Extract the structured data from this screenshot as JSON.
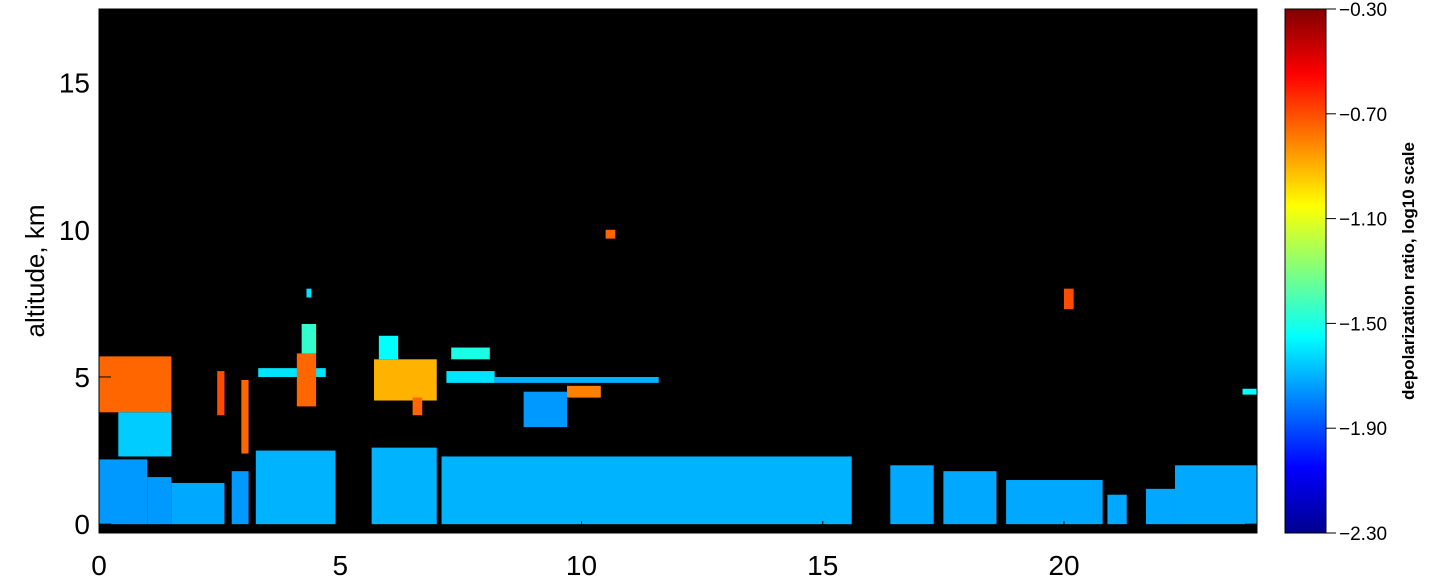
{
  "chart_data": {
    "type": "heatmap",
    "title": "",
    "xlabel": "",
    "ylabel": "altitude, km",
    "xlim": [
      0,
      24
    ],
    "ylim": [
      -0.3,
      17.5
    ],
    "x_ticks": [
      0,
      5,
      10,
      15,
      20
    ],
    "x_tick_labels": [
      "0",
      "5",
      "10",
      "15",
      "20"
    ],
    "y_ticks": [
      0,
      5,
      10,
      15
    ],
    "y_tick_labels": [
      "0",
      "5",
      "10",
      "15"
    ],
    "background_color": "#000000",
    "colorbar": {
      "label": "depolarization ratio, log10 scale",
      "range": [
        -2.3,
        -0.3
      ],
      "ticks": [
        -2.3,
        -1.9,
        -1.5,
        -1.1,
        -0.7,
        -0.3
      ],
      "tick_labels": [
        "−2.30",
        "−1.90",
        "−1.50",
        "−1.10",
        "−0.70",
        "−0.30"
      ],
      "colormap": "jet"
    },
    "regions": [
      {
        "x": [
          0.0,
          1.0
        ],
        "y": [
          0.0,
          2.2
        ],
        "value": -1.75
      },
      {
        "x": [
          1.0,
          1.5
        ],
        "y": [
          0.0,
          1.6
        ],
        "value": -1.75
      },
      {
        "x": [
          1.5,
          2.6
        ],
        "y": [
          0.0,
          1.4
        ],
        "value": -1.72
      },
      {
        "x": [
          2.75,
          3.1
        ],
        "y": [
          0.0,
          1.8
        ],
        "value": -1.75
      },
      {
        "x": [
          3.25,
          4.9
        ],
        "y": [
          0.0,
          2.5
        ],
        "value": -1.7
      },
      {
        "x": [
          5.65,
          7.0
        ],
        "y": [
          0.0,
          2.6
        ],
        "value": -1.7
      },
      {
        "x": [
          7.1,
          15.6
        ],
        "y": [
          0.0,
          2.3
        ],
        "value": -1.7
      },
      {
        "x": [
          16.4,
          17.3
        ],
        "y": [
          0.0,
          2.0
        ],
        "value": -1.72
      },
      {
        "x": [
          17.5,
          18.6
        ],
        "y": [
          0.0,
          1.8
        ],
        "value": -1.72
      },
      {
        "x": [
          18.8,
          20.8
        ],
        "y": [
          0.0,
          1.5
        ],
        "value": -1.72
      },
      {
        "x": [
          20.9,
          21.3
        ],
        "y": [
          0.0,
          1.0
        ],
        "value": -1.72
      },
      {
        "x": [
          21.7,
          22.3
        ],
        "y": [
          0.0,
          1.2
        ],
        "value": -1.72
      },
      {
        "x": [
          22.3,
          24.0
        ],
        "y": [
          0.0,
          2.0
        ],
        "value": -1.72
      },
      {
        "x": [
          0.0,
          1.5
        ],
        "y": [
          3.8,
          5.7
        ],
        "value": -0.75
      },
      {
        "x": [
          0.4,
          1.5
        ],
        "y": [
          2.3,
          3.8
        ],
        "value": -1.65
      },
      {
        "x": [
          2.45,
          2.6
        ],
        "y": [
          3.7,
          5.2
        ],
        "value": -0.7
      },
      {
        "x": [
          2.95,
          3.1
        ],
        "y": [
          2.4,
          4.9
        ],
        "value": -0.75
      },
      {
        "x": [
          3.3,
          4.7
        ],
        "y": [
          5.0,
          5.3
        ],
        "value": -1.6
      },
      {
        "x": [
          4.1,
          4.5
        ],
        "y": [
          4.0,
          5.8
        ],
        "value": -0.75
      },
      {
        "x": [
          4.2,
          4.5
        ],
        "y": [
          5.8,
          6.8
        ],
        "value": -1.45
      },
      {
        "x": [
          5.7,
          7.0
        ],
        "y": [
          4.2,
          5.6
        ],
        "value": -0.9
      },
      {
        "x": [
          5.8,
          6.2
        ],
        "y": [
          5.6,
          6.4
        ],
        "value": -1.55
      },
      {
        "x": [
          6.5,
          6.7
        ],
        "y": [
          3.7,
          4.3
        ],
        "value": -0.75
      },
      {
        "x": [
          7.3,
          8.1
        ],
        "y": [
          5.6,
          6.0
        ],
        "value": -1.5
      },
      {
        "x": [
          7.2,
          8.2
        ],
        "y": [
          4.8,
          5.2
        ],
        "value": -1.6
      },
      {
        "x": [
          8.2,
          11.6
        ],
        "y": [
          4.8,
          5.0
        ],
        "value": -1.7
      },
      {
        "x": [
          9.7,
          10.4
        ],
        "y": [
          4.3,
          4.7
        ],
        "value": -0.8
      },
      {
        "x": [
          8.8,
          9.7
        ],
        "y": [
          3.3,
          4.5
        ],
        "value": -1.75
      },
      {
        "x": [
          10.5,
          10.7
        ],
        "y": [
          9.7,
          10.0
        ],
        "value": -0.75
      },
      {
        "x": [
          20.0,
          20.2
        ],
        "y": [
          7.3,
          8.0
        ],
        "value": -0.7
      },
      {
        "x": [
          4.3,
          4.4
        ],
        "y": [
          7.7,
          8.0
        ],
        "value": -1.6
      },
      {
        "x": [
          23.7,
          24.0
        ],
        "y": [
          4.4,
          4.6
        ],
        "value": -1.55
      }
    ]
  }
}
